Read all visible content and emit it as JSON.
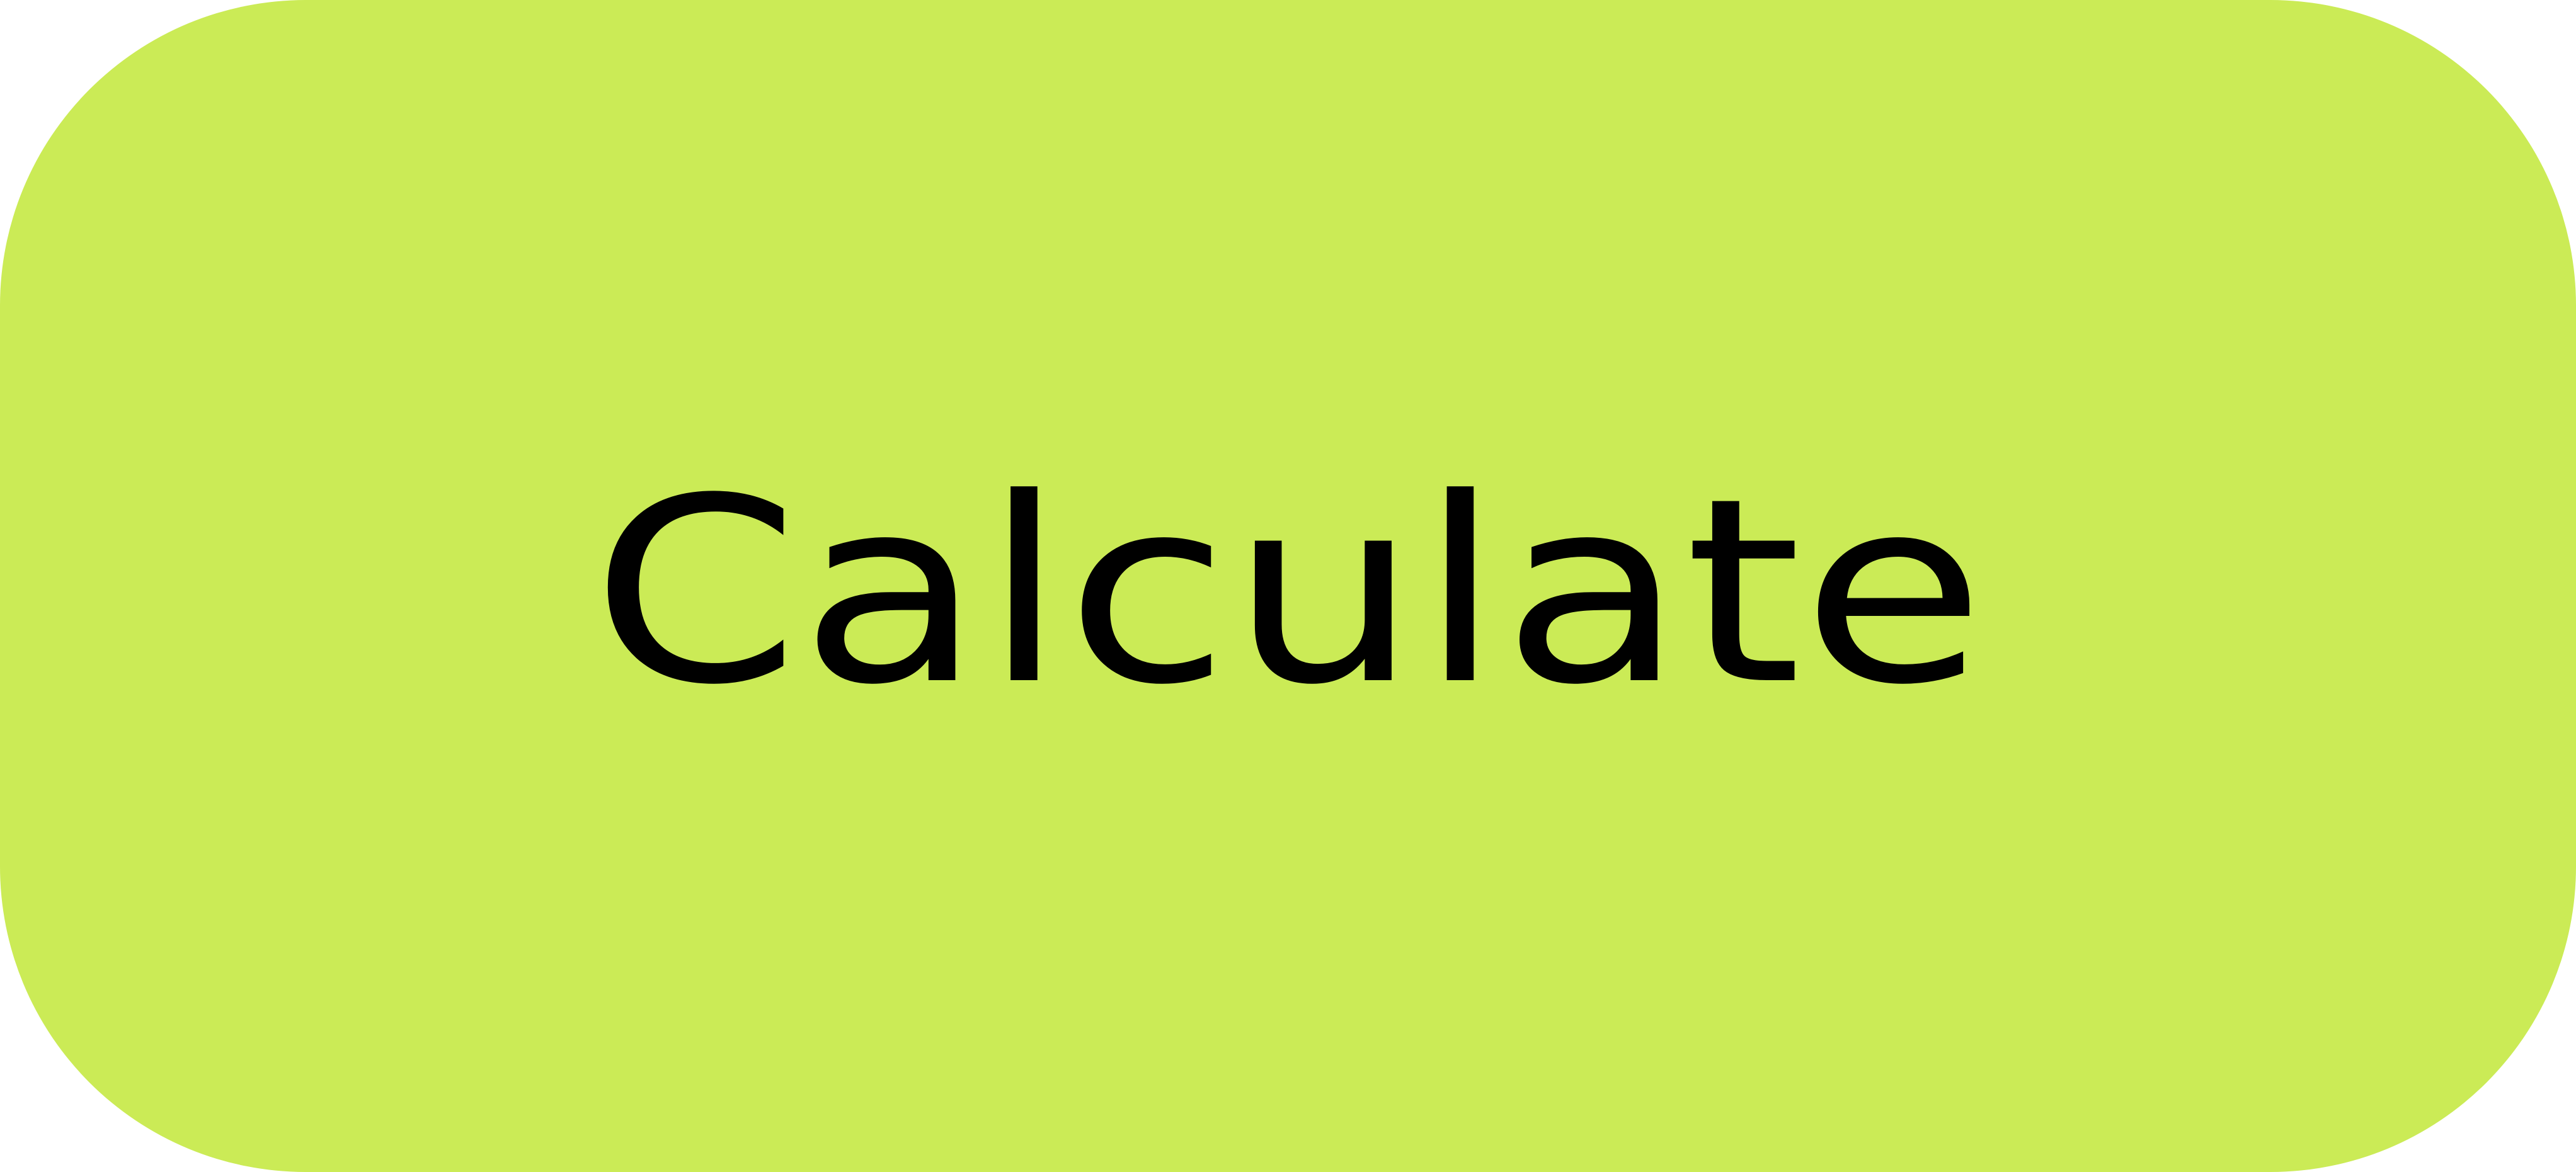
{
  "button": {
    "label": "Calculate",
    "background_color": "#cbeb56",
    "text_color": "#000000"
  }
}
